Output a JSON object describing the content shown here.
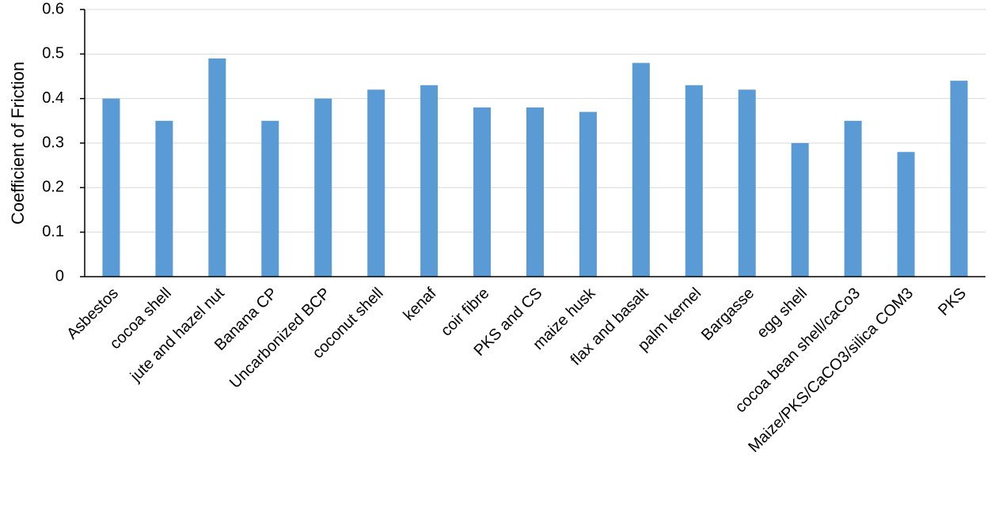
{
  "chart_data": {
    "type": "bar",
    "y_label": "Coefficient of Friction",
    "categories": [
      "Asbestos",
      "cocoa shell",
      "jute and hazel nut",
      "Banana CP",
      "Uncarbonized BCP",
      "coconut shell",
      "kenaf",
      "coir fibre",
      "PKS and CS",
      "maize husk",
      "flax and basalt",
      "palm kernel",
      "Bargasse",
      "egg shell",
      "cocoa bean shell/caCo3",
      "Maize/PKS/CaCO3/silica COM3",
      "PKS"
    ],
    "values": [
      0.4,
      0.35,
      0.49,
      0.35,
      0.4,
      0.42,
      0.43,
      0.38,
      0.38,
      0.37,
      0.48,
      0.43,
      0.42,
      0.3,
      0.35,
      0.28,
      0.44
    ],
    "color": "#5b9bd5",
    "ylim": [
      0,
      0.6
    ],
    "yticks": [
      0,
      0.1,
      0.2,
      0.3,
      0.4,
      0.5,
      0.6
    ],
    "grid": true
  }
}
